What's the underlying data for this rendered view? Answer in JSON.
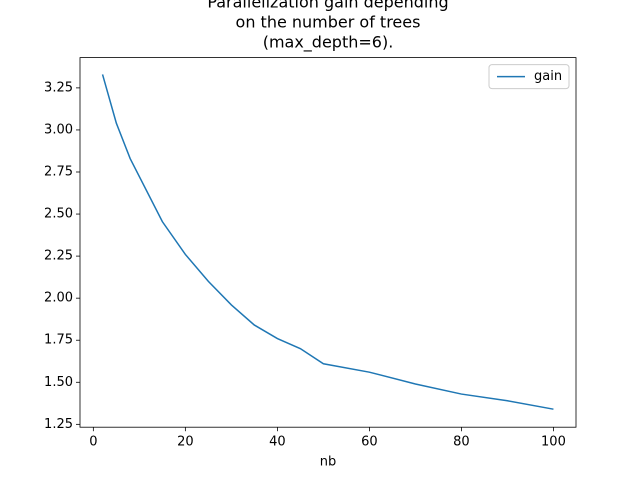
{
  "chart_data": {
    "type": "line",
    "title": [
      "Parallelization gain depending",
      "on the number of trees",
      "(max_depth=6)."
    ],
    "xlabel": "nb",
    "x": [
      2,
      5,
      8,
      15,
      20,
      25,
      30,
      35,
      40,
      45,
      50,
      60,
      70,
      80,
      90,
      100
    ],
    "series": [
      {
        "name": "gain",
        "color": "#1f77b4",
        "values": [
          3.33,
          3.04,
          2.83,
          2.455,
          2.26,
          2.1,
          1.96,
          1.84,
          1.76,
          1.7,
          1.61,
          1.56,
          1.49,
          1.43,
          1.39,
          1.34
        ]
      }
    ],
    "xlim": [
      -2.9,
      104.9
    ],
    "ylim": [
      1.233,
      3.43
    ],
    "xticks": [
      0,
      20,
      40,
      60,
      80,
      100
    ],
    "yticks": [
      1.25,
      {
        "value": 1.5,
        "label": "1.50"
      },
      1.75,
      {
        "value": 2.0,
        "label": "2.00"
      },
      2.25,
      {
        "value": 2.5,
        "label": "2.50"
      },
      2.75,
      {
        "value": 3.0,
        "label": "3.00"
      },
      3.25
    ],
    "legend": "upper right",
    "grid": false
  }
}
